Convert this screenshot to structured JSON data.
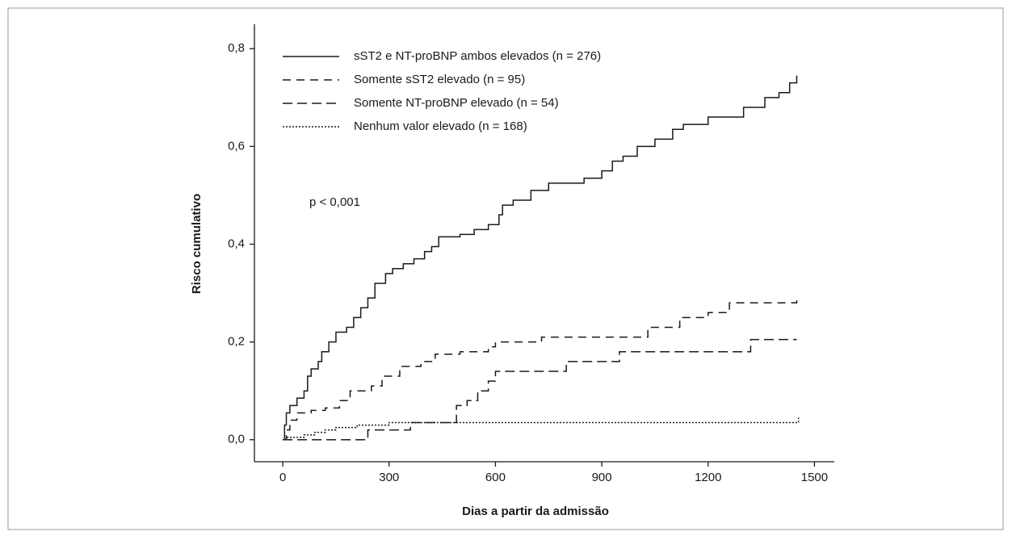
{
  "chart_data": {
    "type": "step",
    "x_label": "Dias a partir da admissão",
    "y_label": "Risco cumulativo",
    "annotation": "p < 0,001",
    "xlim": [
      -80,
      1556
    ],
    "ylim": [
      -0.045,
      0.85
    ],
    "xticks": [
      0,
      300,
      600,
      900,
      1200,
      1500
    ],
    "yticks": [
      {
        "value": 0,
        "label": "0,0"
      },
      {
        "value": 0.2,
        "label": "0,2"
      },
      {
        "value": 0.4,
        "label": "0,4"
      },
      {
        "value": 0.6,
        "label": "0,6"
      },
      {
        "value": 0.8,
        "label": "0,8"
      }
    ],
    "series": [
      {
        "name": "sST2 e NT-proBNP ambos elevados (n = 276)",
        "color": "#1a1a1a",
        "dash": "none",
        "x": [
          0,
          5,
          10,
          20,
          40,
          60,
          70,
          80,
          100,
          110,
          130,
          150,
          180,
          200,
          220,
          240,
          260,
          290,
          310,
          340,
          370,
          400,
          420,
          440,
          500,
          540,
          580,
          610,
          620,
          650,
          700,
          750,
          850,
          900,
          930,
          960,
          1000,
          1050,
          1100,
          1130,
          1200,
          1300,
          1360,
          1400,
          1430,
          1450
        ],
        "values": [
          0,
          0.03,
          0.055,
          0.07,
          0.085,
          0.1,
          0.13,
          0.145,
          0.16,
          0.18,
          0.2,
          0.22,
          0.23,
          0.25,
          0.27,
          0.29,
          0.32,
          0.34,
          0.35,
          0.36,
          0.37,
          0.385,
          0.395,
          0.415,
          0.42,
          0.43,
          0.44,
          0.46,
          0.48,
          0.49,
          0.51,
          0.525,
          0.535,
          0.55,
          0.57,
          0.58,
          0.6,
          0.615,
          0.635,
          0.645,
          0.66,
          0.68,
          0.7,
          0.71,
          0.73,
          0.745
        ]
      },
      {
        "name": "Somente sST2 elevado (n = 95)",
        "color": "#1a1a1a",
        "dash": "10,7",
        "x": [
          0,
          10,
          20,
          40,
          80,
          120,
          160,
          190,
          250,
          280,
          330,
          390,
          430,
          500,
          580,
          600,
          730,
          1030,
          1120,
          1200,
          1260,
          1450
        ],
        "values": [
          0,
          0.02,
          0.04,
          0.055,
          0.06,
          0.065,
          0.08,
          0.1,
          0.11,
          0.13,
          0.15,
          0.16,
          0.175,
          0.18,
          0.19,
          0.2,
          0.21,
          0.23,
          0.25,
          0.26,
          0.28,
          0.285
        ]
      },
      {
        "name": "Somente NT-proBNP elevado (n = 54)",
        "color": "#1a1a1a",
        "dash": "12,6",
        "x": [
          0,
          240,
          360,
          490,
          520,
          550,
          580,
          600,
          800,
          950,
          1320,
          1450
        ],
        "values": [
          0,
          0.02,
          0.035,
          0.07,
          0.08,
          0.1,
          0.12,
          0.14,
          0.16,
          0.18,
          0.205,
          0.205
        ]
      },
      {
        "name": "Nenhum valor elevado (n = 168)",
        "color": "#1a1a1a",
        "dash": "2,2",
        "x": [
          0,
          10,
          60,
          90,
          120,
          150,
          210,
          300,
          1450,
          1455
        ],
        "values": [
          0,
          0.005,
          0.01,
          0.015,
          0.02,
          0.025,
          0.03,
          0.035,
          0.035,
          0.045
        ]
      }
    ]
  }
}
